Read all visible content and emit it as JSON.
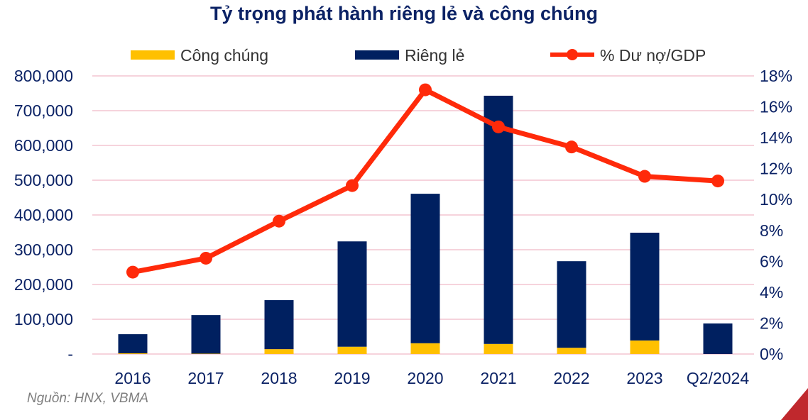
{
  "chart_data": {
    "type": "bar",
    "title": "Tỷ trọng phát hành riêng lẻ và công chúng",
    "categories": [
      "2016",
      "2017",
      "2018",
      "2019",
      "2020",
      "2021",
      "2022",
      "2023",
      "Q2/2024"
    ],
    "series": [
      {
        "name": "Công chúng",
        "kind": "bar",
        "stack": "a",
        "axis": "left",
        "color": "#ffc000",
        "values": [
          2000,
          1000,
          14000,
          21000,
          31000,
          29000,
          18000,
          39000,
          0
        ]
      },
      {
        "name": "Riêng lẻ",
        "kind": "bar",
        "stack": "a",
        "axis": "left",
        "color": "#002060",
        "values": [
          55000,
          111000,
          141000,
          303000,
          430000,
          714000,
          249000,
          310000,
          88000
        ]
      },
      {
        "name": "% Dư nợ/GDP",
        "kind": "line",
        "axis": "right",
        "color": "#ff2a0a",
        "values": [
          5.3,
          6.2,
          8.6,
          10.9,
          17.1,
          14.7,
          13.4,
          11.5,
          11.2
        ]
      }
    ],
    "y_left": {
      "lim": [
        0,
        800000
      ],
      "ticks": [
        0,
        100000,
        200000,
        300000,
        400000,
        500000,
        600000,
        700000,
        800000
      ],
      "tick_labels": [
        "-",
        "100,000",
        "200,000",
        "300,000",
        "400,000",
        "500,000",
        "600,000",
        "700,000",
        "800,000"
      ]
    },
    "y_right": {
      "lim": [
        0,
        18
      ],
      "ticks": [
        0,
        2,
        4,
        6,
        8,
        10,
        12,
        14,
        16,
        18
      ],
      "tick_labels": [
        "0%",
        "2%",
        "4%",
        "6%",
        "8%",
        "10%",
        "12%",
        "14%",
        "16%",
        "18%"
      ]
    },
    "grid": true,
    "legend_position": "top",
    "source": "Nguồn: HNX, VBMA"
  }
}
